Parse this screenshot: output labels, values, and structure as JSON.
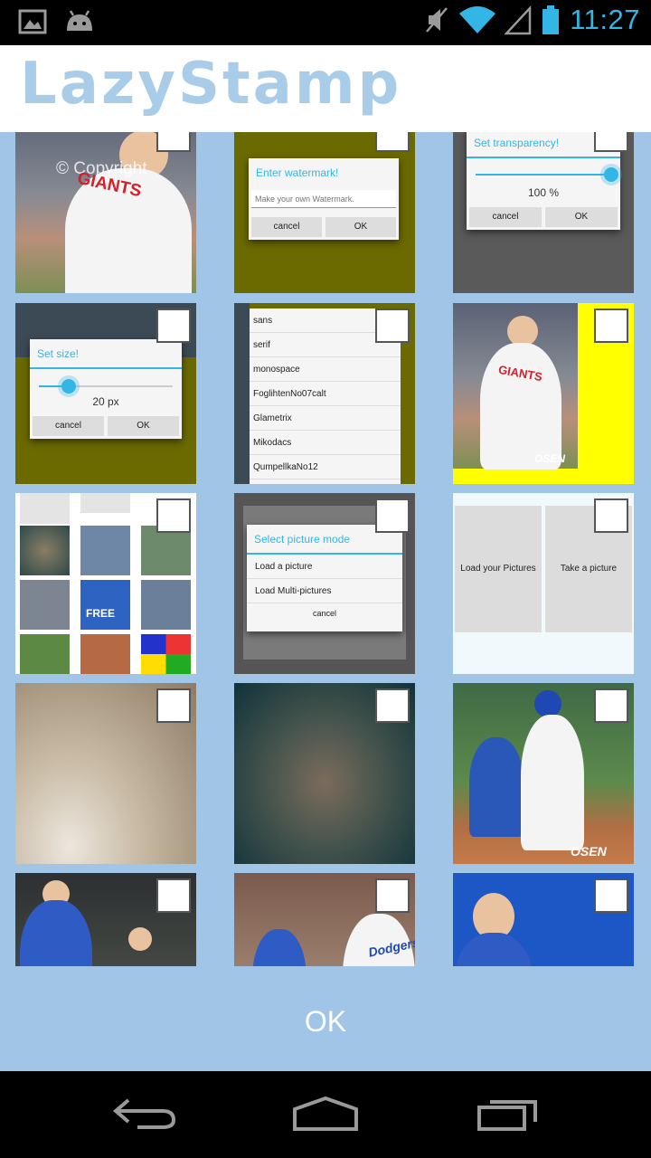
{
  "status_bar": {
    "time": "11:27",
    "icons": [
      "picture-icon",
      "android-debug-icon",
      "muted-icon",
      "wifi-icon",
      "signal-icon",
      "battery-icon"
    ]
  },
  "app": {
    "title": "LazyStamp",
    "accent": "#33b5e5",
    "background": "#a1c5e6"
  },
  "tiles": [
    {
      "watermark": "© Copyright",
      "jersey": "GIANTS"
    },
    {
      "dialog_title": "Enter watermark!",
      "placeholder": "Make your own Watermark.",
      "cancel": "cancel",
      "ok": "OK"
    },
    {
      "dialog_title": "Set transparency!",
      "value": "100 %",
      "level": 1.0,
      "cancel": "cancel",
      "ok": "OK"
    },
    {
      "dialog_title": "Set size!",
      "value": "20 px",
      "level": 0.22,
      "cancel": "cancel",
      "ok": "OK"
    },
    {
      "fonts": [
        "sans",
        "serif",
        "monospace",
        "FoglihtenNo07calt",
        "Glametrix",
        "Mikodacs",
        "QumpellkaNo12"
      ]
    },
    {
      "jersey": "GIANTS",
      "badge": "OSEN"
    },
    {
      "free": "FREE"
    },
    {
      "dialog_title": "Select picture mode",
      "options": [
        "Load a picture",
        "Load Multi-pictures"
      ],
      "cancel": "cancel"
    },
    {
      "buttons": [
        "Load your Pictures",
        "Take a picture"
      ]
    },
    {},
    {},
    {
      "badge": "OSEN"
    },
    {},
    {
      "jersey": "Dodgers"
    },
    {}
  ],
  "ok_label": "OK",
  "nav": {
    "icons": [
      "back-icon",
      "home-icon",
      "recent-apps-icon"
    ]
  }
}
